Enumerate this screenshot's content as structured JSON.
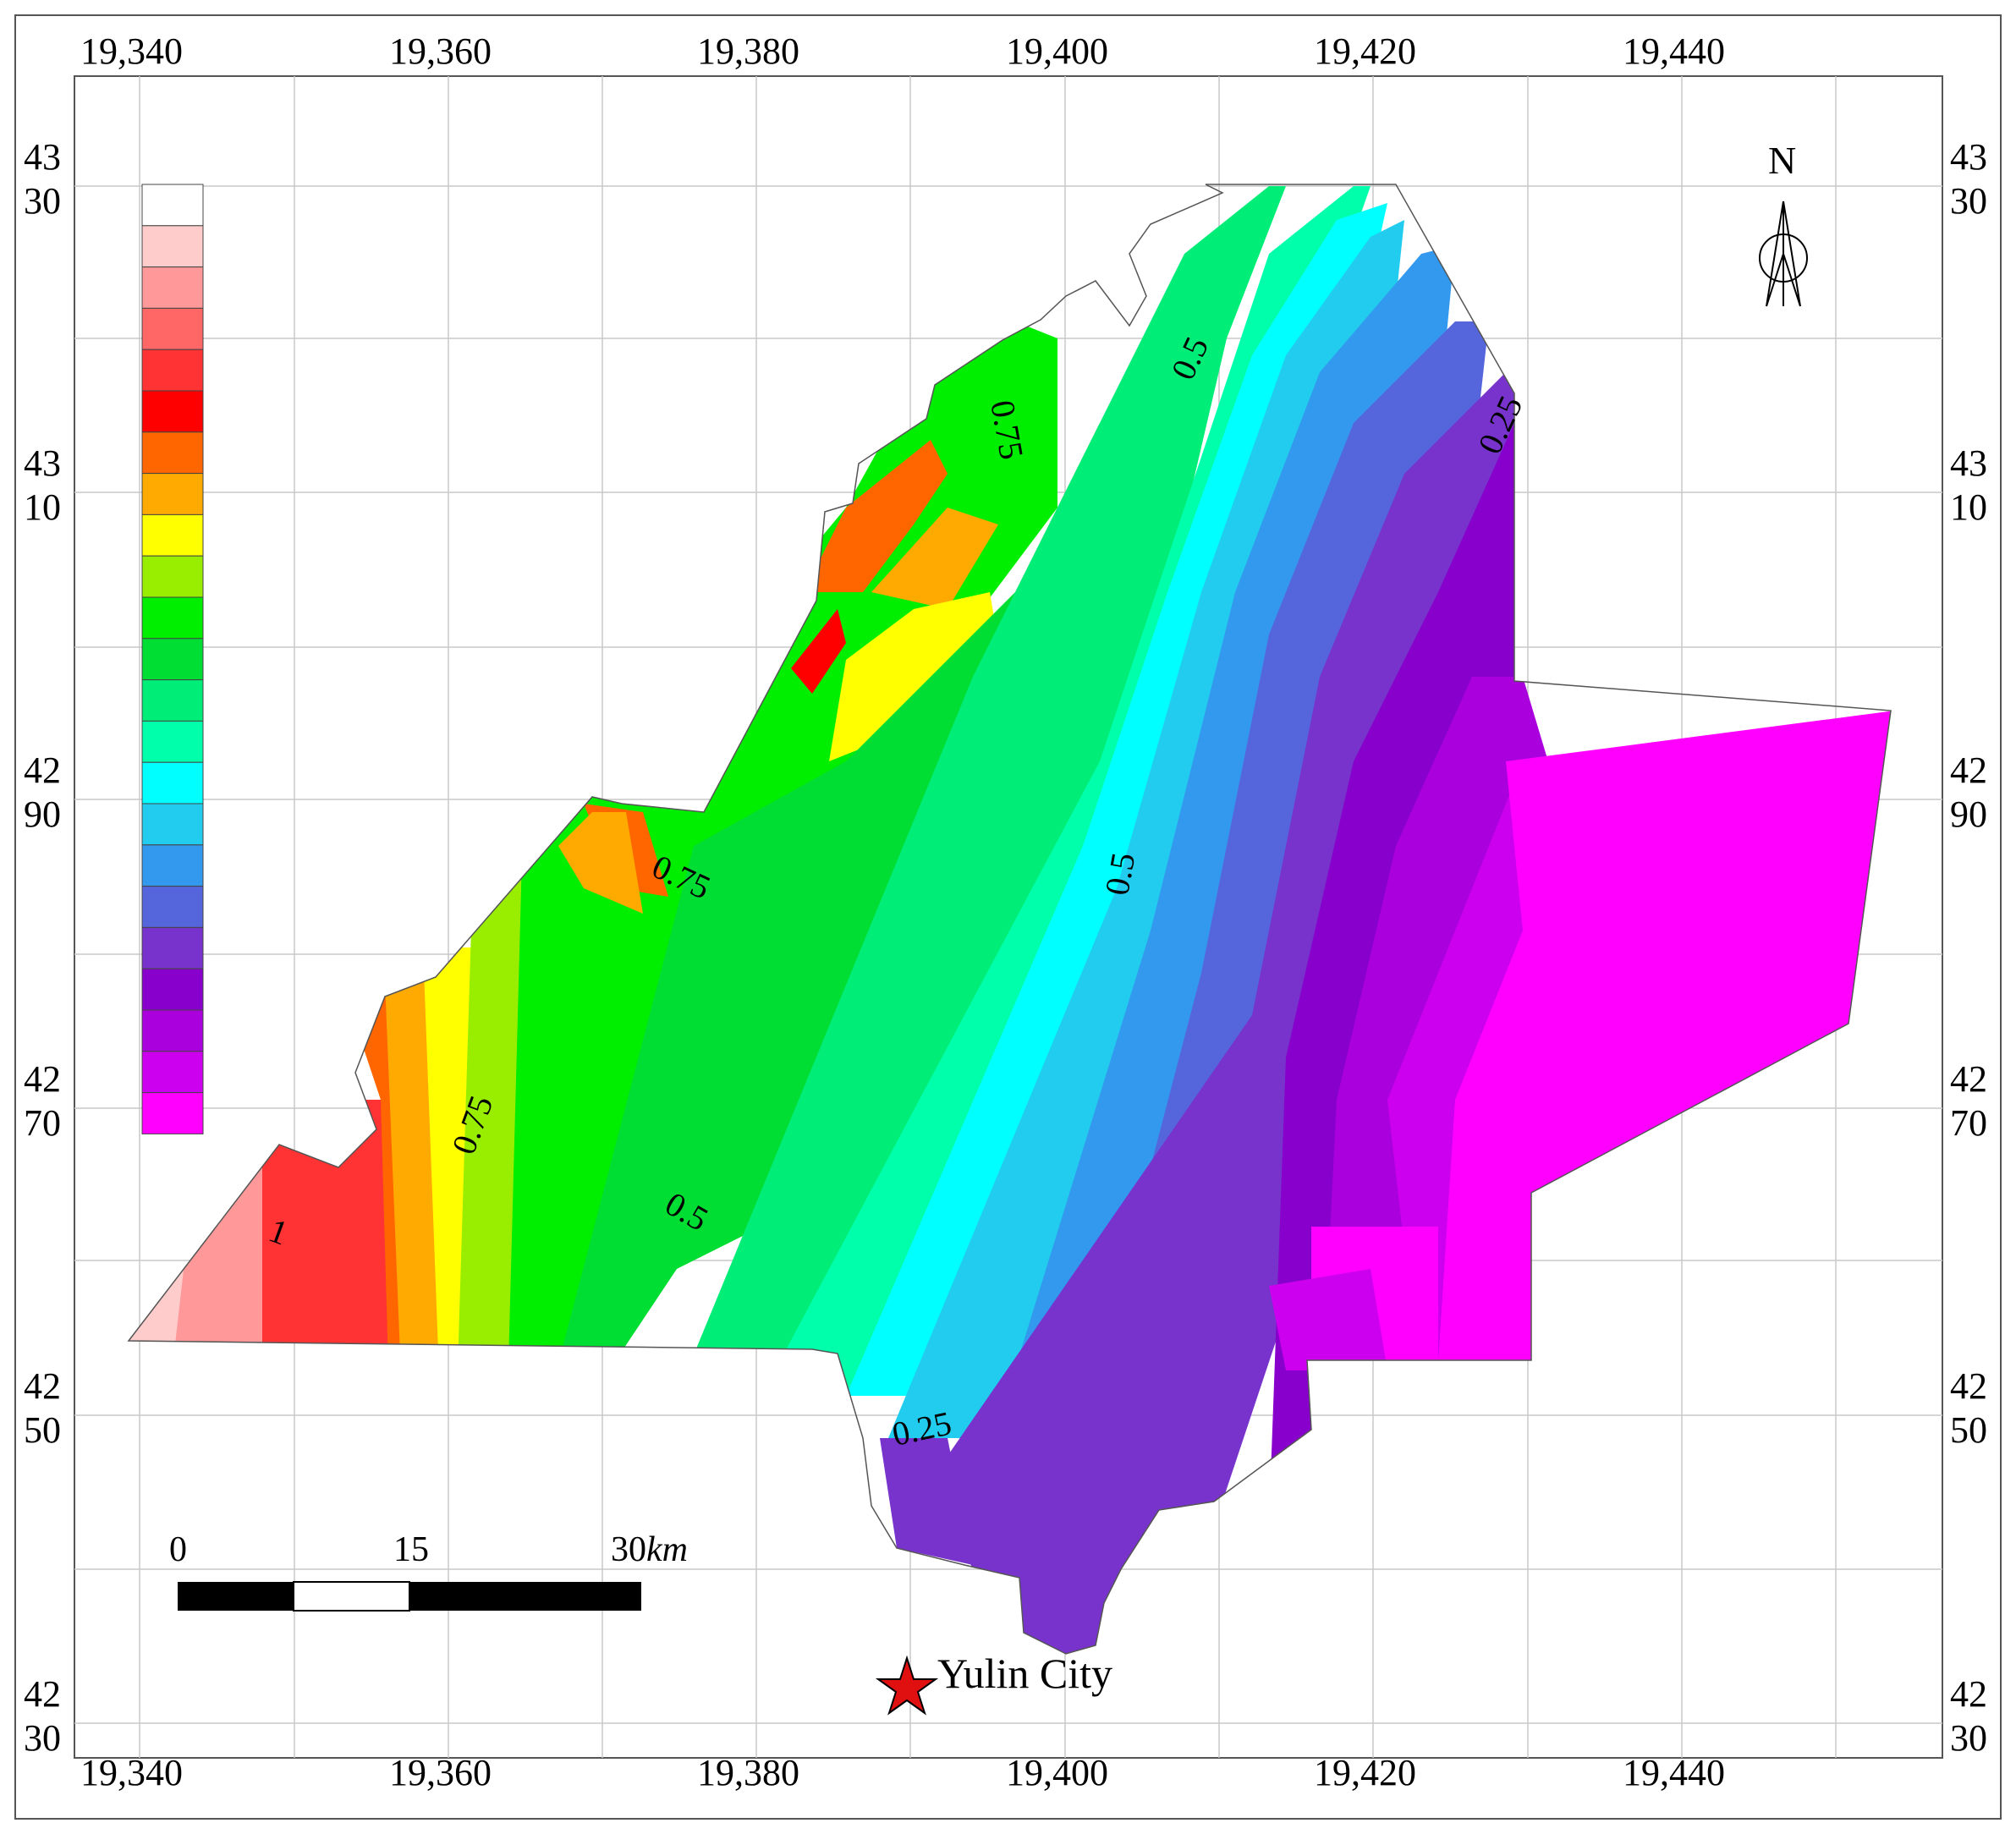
{
  "map": {
    "x_ticks": [
      "19,340",
      "19,360",
      "19,380",
      "19,400",
      "19,420",
      "19,440"
    ],
    "y_ticks": [
      {
        "top": "43",
        "bottom": "30"
      },
      {
        "top": "43",
        "bottom": "10"
      },
      {
        "top": "42",
        "bottom": "90"
      },
      {
        "top": "42",
        "bottom": "70"
      },
      {
        "top": "42",
        "bottom": "50"
      },
      {
        "top": "42",
        "bottom": "30"
      }
    ],
    "contour_labels": [
      "1",
      "0.75",
      "0.75",
      "0.75",
      "0.5",
      "0.5",
      "0.5",
      "0.25",
      "0.25"
    ],
    "north_label": "N",
    "scale_bar": {
      "zero": "0",
      "mid": "15",
      "end": "30",
      "unit": "km"
    },
    "city": {
      "name": "Yulin City"
    },
    "legend_colors": [
      "#ffffff",
      "#ffcccc",
      "#ff9999",
      "#ff6666",
      "#ff3333",
      "#ff0000",
      "#ff6600",
      "#ffaa00",
      "#ffff00",
      "#99ee00",
      "#00ee00",
      "#00dd33",
      "#00ee77",
      "#00ffaa",
      "#00ffff",
      "#22ccee",
      "#3399ee",
      "#5566dd",
      "#7733cc",
      "#8800cc",
      "#aa00dd",
      "#cc00ee",
      "#ff00ff"
    ],
    "colors": {
      "grid": "#c8c8c8",
      "frame": "#555555"
    }
  }
}
